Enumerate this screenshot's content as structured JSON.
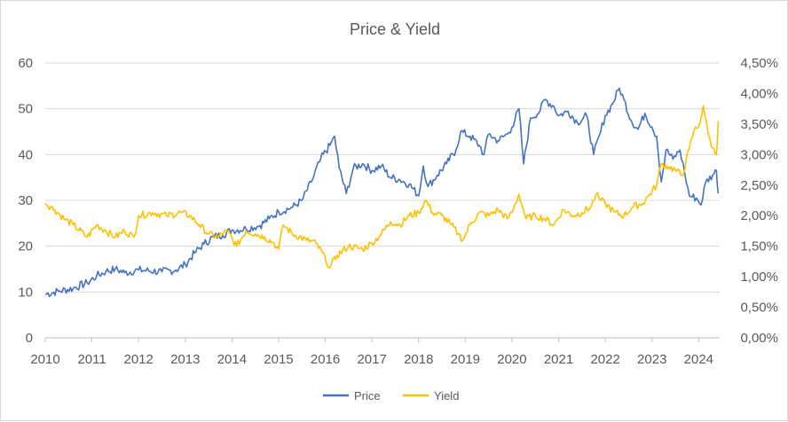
{
  "chart_data": {
    "type": "line",
    "title": "Price & Yield",
    "x_ticks": [
      "2010",
      "2011",
      "2012",
      "2013",
      "2014",
      "2015",
      "2016",
      "2017",
      "2018",
      "2019",
      "2020",
      "2021",
      "2022",
      "2023",
      "2024"
    ],
    "y_left": {
      "ticks": [
        "0",
        "10",
        "20",
        "30",
        "40",
        "50",
        "60"
      ],
      "ylim": [
        0,
        60
      ]
    },
    "y_right": {
      "ticks": [
        "0,00%",
        "0,50%",
        "1,00%",
        "1,50%",
        "2,00%",
        "2,50%",
        "3,00%",
        "3,50%",
        "4,00%",
        "4,50%"
      ],
      "ylim": [
        0,
        4.5
      ]
    },
    "xlim": [
      2010,
      2024.45
    ],
    "grid": true,
    "legend_position": "bottom",
    "series": [
      {
        "name": "Price",
        "axis": "left",
        "color": "#4472C4",
        "points": [
          [
            2010.0,
            9.5
          ],
          [
            2010.3,
            10.2
          ],
          [
            2010.6,
            10.8
          ],
          [
            2010.9,
            12.0
          ],
          [
            2011.1,
            13.5
          ],
          [
            2011.3,
            14.5
          ],
          [
            2011.5,
            15.0
          ],
          [
            2011.7,
            14.2
          ],
          [
            2012.0,
            14.8
          ],
          [
            2012.5,
            14.4
          ],
          [
            2012.8,
            14.8
          ],
          [
            2013.0,
            16.0
          ],
          [
            2013.2,
            18.5
          ],
          [
            2013.4,
            20.5
          ],
          [
            2013.6,
            22.0
          ],
          [
            2013.8,
            22.5
          ],
          [
            2014.0,
            23.5
          ],
          [
            2014.3,
            23.8
          ],
          [
            2014.6,
            24.5
          ],
          [
            2014.8,
            26.0
          ],
          [
            2015.0,
            27.5
          ],
          [
            2015.3,
            28.5
          ],
          [
            2015.5,
            30.0
          ],
          [
            2015.7,
            34.0
          ],
          [
            2015.9,
            39.0
          ],
          [
            2016.1,
            42.0
          ],
          [
            2016.2,
            44.0
          ],
          [
            2016.3,
            37.0
          ],
          [
            2016.45,
            31.5
          ],
          [
            2016.6,
            37.0
          ],
          [
            2016.8,
            38.0
          ],
          [
            2017.0,
            36.5
          ],
          [
            2017.2,
            37.5
          ],
          [
            2017.4,
            35.0
          ],
          [
            2017.6,
            34.5
          ],
          [
            2017.8,
            33.5
          ],
          [
            2018.0,
            31.0
          ],
          [
            2018.1,
            37.5
          ],
          [
            2018.2,
            33.0
          ],
          [
            2018.4,
            35.5
          ],
          [
            2018.6,
            38.0
          ],
          [
            2018.8,
            41.0
          ],
          [
            2018.9,
            45.0
          ],
          [
            2019.1,
            44.0
          ],
          [
            2019.3,
            42.0
          ],
          [
            2019.4,
            40.0
          ],
          [
            2019.5,
            44.5
          ],
          [
            2019.7,
            43.0
          ],
          [
            2019.9,
            44.5
          ],
          [
            2020.0,
            46.0
          ],
          [
            2020.15,
            50.0
          ],
          [
            2020.25,
            38.0
          ],
          [
            2020.4,
            48.0
          ],
          [
            2020.6,
            49.5
          ],
          [
            2020.7,
            52.0
          ],
          [
            2020.9,
            50.5
          ],
          [
            2021.0,
            48.5
          ],
          [
            2021.2,
            49.5
          ],
          [
            2021.4,
            47.0
          ],
          [
            2021.6,
            48.5
          ],
          [
            2021.75,
            40.0
          ],
          [
            2021.9,
            45.0
          ],
          [
            2022.0,
            48.5
          ],
          [
            2022.15,
            51.0
          ],
          [
            2022.3,
            54.5
          ],
          [
            2022.4,
            52.0
          ],
          [
            2022.55,
            47.5
          ],
          [
            2022.7,
            45.5
          ],
          [
            2022.85,
            49.0
          ],
          [
            2023.0,
            46.0
          ],
          [
            2023.1,
            44.0
          ],
          [
            2023.2,
            34.0
          ],
          [
            2023.3,
            41.0
          ],
          [
            2023.45,
            39.0
          ],
          [
            2023.6,
            41.0
          ],
          [
            2023.7,
            36.0
          ],
          [
            2023.8,
            31.0
          ],
          [
            2023.95,
            30.5
          ],
          [
            2024.05,
            29.0
          ],
          [
            2024.15,
            34.0
          ],
          [
            2024.3,
            35.5
          ],
          [
            2024.38,
            36.5
          ],
          [
            2024.42,
            31.5
          ]
        ]
      },
      {
        "name": "Yield",
        "axis": "right",
        "color": "#FFC000",
        "points": [
          [
            2010.0,
            2.2
          ],
          [
            2010.2,
            2.1
          ],
          [
            2010.4,
            1.95
          ],
          [
            2010.6,
            1.85
          ],
          [
            2010.9,
            1.65
          ],
          [
            2011.1,
            1.85
          ],
          [
            2011.3,
            1.75
          ],
          [
            2011.5,
            1.65
          ],
          [
            2011.7,
            1.75
          ],
          [
            2011.9,
            1.65
          ],
          [
            2012.0,
            2.0
          ],
          [
            2012.3,
            2.05
          ],
          [
            2012.6,
            2.0
          ],
          [
            2012.9,
            2.05
          ],
          [
            2013.1,
            2.0
          ],
          [
            2013.3,
            1.85
          ],
          [
            2013.5,
            1.7
          ],
          [
            2013.7,
            1.65
          ],
          [
            2013.9,
            1.75
          ],
          [
            2014.1,
            1.5
          ],
          [
            2014.3,
            1.75
          ],
          [
            2014.5,
            1.7
          ],
          [
            2014.7,
            1.65
          ],
          [
            2014.9,
            1.55
          ],
          [
            2015.0,
            1.45
          ],
          [
            2015.1,
            1.85
          ],
          [
            2015.3,
            1.7
          ],
          [
            2015.6,
            1.6
          ],
          [
            2015.8,
            1.55
          ],
          [
            2016.0,
            1.3
          ],
          [
            2016.1,
            1.15
          ],
          [
            2016.25,
            1.35
          ],
          [
            2016.5,
            1.5
          ],
          [
            2016.8,
            1.45
          ],
          [
            2017.0,
            1.55
          ],
          [
            2017.2,
            1.7
          ],
          [
            2017.4,
            1.9
          ],
          [
            2017.6,
            1.85
          ],
          [
            2017.8,
            2.0
          ],
          [
            2018.0,
            2.05
          ],
          [
            2018.15,
            2.25
          ],
          [
            2018.3,
            2.05
          ],
          [
            2018.5,
            2.0
          ],
          [
            2018.7,
            1.85
          ],
          [
            2018.85,
            1.7
          ],
          [
            2018.95,
            1.6
          ],
          [
            2019.1,
            1.85
          ],
          [
            2019.3,
            2.05
          ],
          [
            2019.5,
            2.0
          ],
          [
            2019.7,
            2.1
          ],
          [
            2019.9,
            1.95
          ],
          [
            2020.0,
            2.05
          ],
          [
            2020.15,
            2.35
          ],
          [
            2020.3,
            1.95
          ],
          [
            2020.5,
            2.0
          ],
          [
            2020.7,
            1.95
          ],
          [
            2020.9,
            1.85
          ],
          [
            2021.1,
            2.1
          ],
          [
            2021.3,
            2.0
          ],
          [
            2021.5,
            2.05
          ],
          [
            2021.7,
            2.15
          ],
          [
            2021.8,
            2.35
          ],
          [
            2021.9,
            2.25
          ],
          [
            2022.0,
            2.2
          ],
          [
            2022.2,
            2.05
          ],
          [
            2022.4,
            2.0
          ],
          [
            2022.6,
            2.15
          ],
          [
            2022.8,
            2.2
          ],
          [
            2022.95,
            2.35
          ],
          [
            2023.1,
            2.5
          ],
          [
            2023.2,
            2.85
          ],
          [
            2023.35,
            2.8
          ],
          [
            2023.5,
            2.75
          ],
          [
            2023.65,
            2.65
          ],
          [
            2023.8,
            3.1
          ],
          [
            2023.9,
            3.4
          ],
          [
            2024.0,
            3.45
          ],
          [
            2024.1,
            3.8
          ],
          [
            2024.2,
            3.35
          ],
          [
            2024.3,
            3.1
          ],
          [
            2024.38,
            3.0
          ],
          [
            2024.42,
            3.55
          ]
        ]
      }
    ]
  }
}
